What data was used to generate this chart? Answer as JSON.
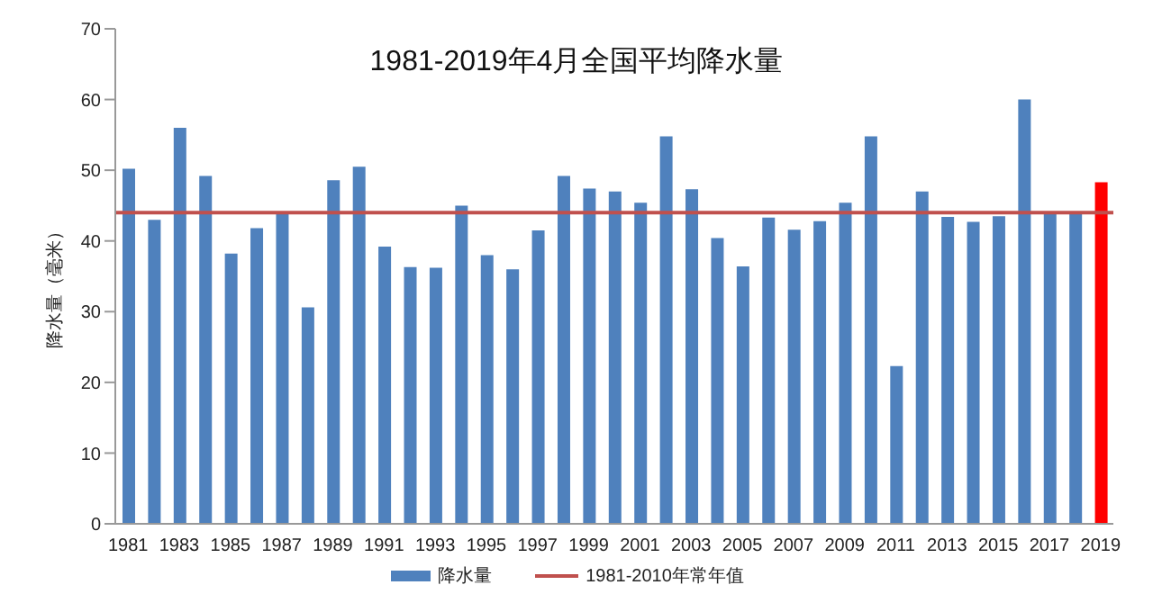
{
  "chart_data": {
    "type": "bar",
    "title": "1981-2019年4月全国平均降水量",
    "ylabel": "降水量（毫米）",
    "categories": [
      "1981",
      null,
      "1983",
      null,
      "1985",
      null,
      "1987",
      null,
      "1989",
      null,
      "1991",
      null,
      "1993",
      null,
      "1995",
      null,
      "1997",
      null,
      "1999",
      null,
      "2001",
      null,
      "2003",
      null,
      "2005",
      null,
      "2007",
      null,
      "2009",
      null,
      "2011",
      null,
      "2013",
      null,
      "2015",
      null,
      "2017",
      null,
      "2019"
    ],
    "series": [
      {
        "name": "降水量",
        "color": "#4f81bd",
        "values": [
          50.2,
          43,
          56,
          49.2,
          38.2,
          41.8,
          44,
          30.6,
          48.6,
          50.5,
          39.2,
          36.3,
          36.2,
          45,
          38,
          36,
          41.5,
          49.2,
          47.4,
          47,
          45.4,
          54.8,
          47.3,
          40.4,
          36.4,
          43.3,
          41.6,
          42.8,
          45.4,
          54.8,
          22.3,
          47,
          43.4,
          42.7,
          43.5,
          60,
          44,
          44,
          48.3
        ],
        "colors": [
          "#4f81bd",
          "#4f81bd",
          "#4f81bd",
          "#4f81bd",
          "#4f81bd",
          "#4f81bd",
          "#4f81bd",
          "#4f81bd",
          "#4f81bd",
          "#4f81bd",
          "#4f81bd",
          "#4f81bd",
          "#4f81bd",
          "#4f81bd",
          "#4f81bd",
          "#4f81bd",
          "#4f81bd",
          "#4f81bd",
          "#4f81bd",
          "#4f81bd",
          "#4f81bd",
          "#4f81bd",
          "#4f81bd",
          "#4f81bd",
          "#4f81bd",
          "#4f81bd",
          "#4f81bd",
          "#4f81bd",
          "#4f81bd",
          "#4f81bd",
          "#4f81bd",
          "#4f81bd",
          "#4f81bd",
          "#4f81bd",
          "#4f81bd",
          "#4f81bd",
          "#4f81bd",
          "#4f81bd",
          "#ff0000"
        ]
      }
    ],
    "ref_lines": [
      {
        "axis": "y",
        "value": 44,
        "label": "1981-2010年常年值",
        "color": "#c0504d"
      }
    ],
    "ylim": [
      0,
      70
    ],
    "yticks": [
      0,
      10,
      20,
      30,
      40,
      50,
      60,
      70
    ],
    "grid": false,
    "legend": "bottom"
  }
}
